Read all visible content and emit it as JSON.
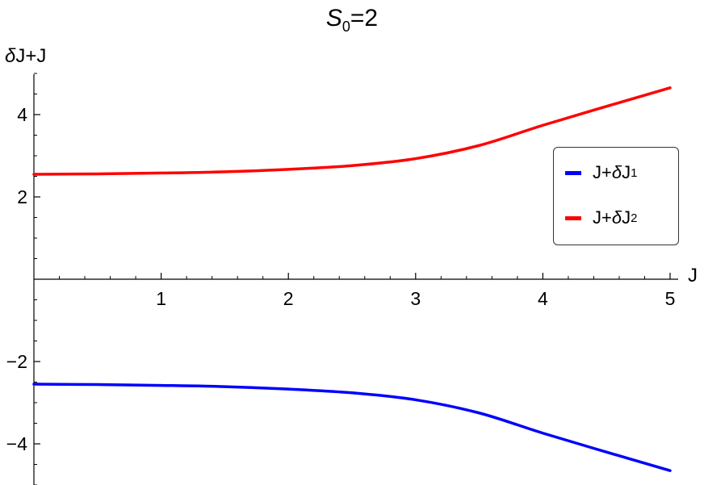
{
  "chart_data": {
    "type": "line",
    "title_main": "S",
    "title_sub": "0",
    "title_rest": "=2",
    "ylabel_delta": "δ",
    "ylabel_rest": "J+J",
    "xlabel": "J",
    "xlim": [
      0,
      5
    ],
    "ylim": [
      -5,
      5
    ],
    "xticks": [
      1,
      2,
      3,
      4,
      5
    ],
    "yticks": [
      -4,
      -2,
      2,
      4
    ],
    "ytick_labels": [
      "−4",
      "−2",
      "2",
      "4"
    ],
    "grid": false,
    "legend_position": "right",
    "series": [
      {
        "name_prefix": "J+",
        "name_delta": "δ",
        "name_mid": "J",
        "name_sub": "1",
        "color": "#0000ff",
        "x": [
          0,
          0.5,
          1.0,
          1.5,
          2.0,
          2.5,
          3.0,
          3.5,
          4.0,
          4.5,
          5.0
        ],
        "y": [
          -2.55,
          -2.56,
          -2.58,
          -2.61,
          -2.67,
          -2.76,
          -2.93,
          -3.25,
          -3.74,
          -4.2,
          -4.65
        ]
      },
      {
        "name_prefix": "J+",
        "name_delta": "δ",
        "name_mid": "J",
        "name_sub": "2",
        "color": "#ff0000",
        "x": [
          0,
          0.5,
          1.0,
          1.5,
          2.0,
          2.5,
          3.0,
          3.5,
          4.0,
          4.5,
          5.0
        ],
        "y": [
          2.55,
          2.56,
          2.58,
          2.61,
          2.67,
          2.76,
          2.93,
          3.25,
          3.74,
          4.2,
          4.65
        ]
      }
    ]
  }
}
